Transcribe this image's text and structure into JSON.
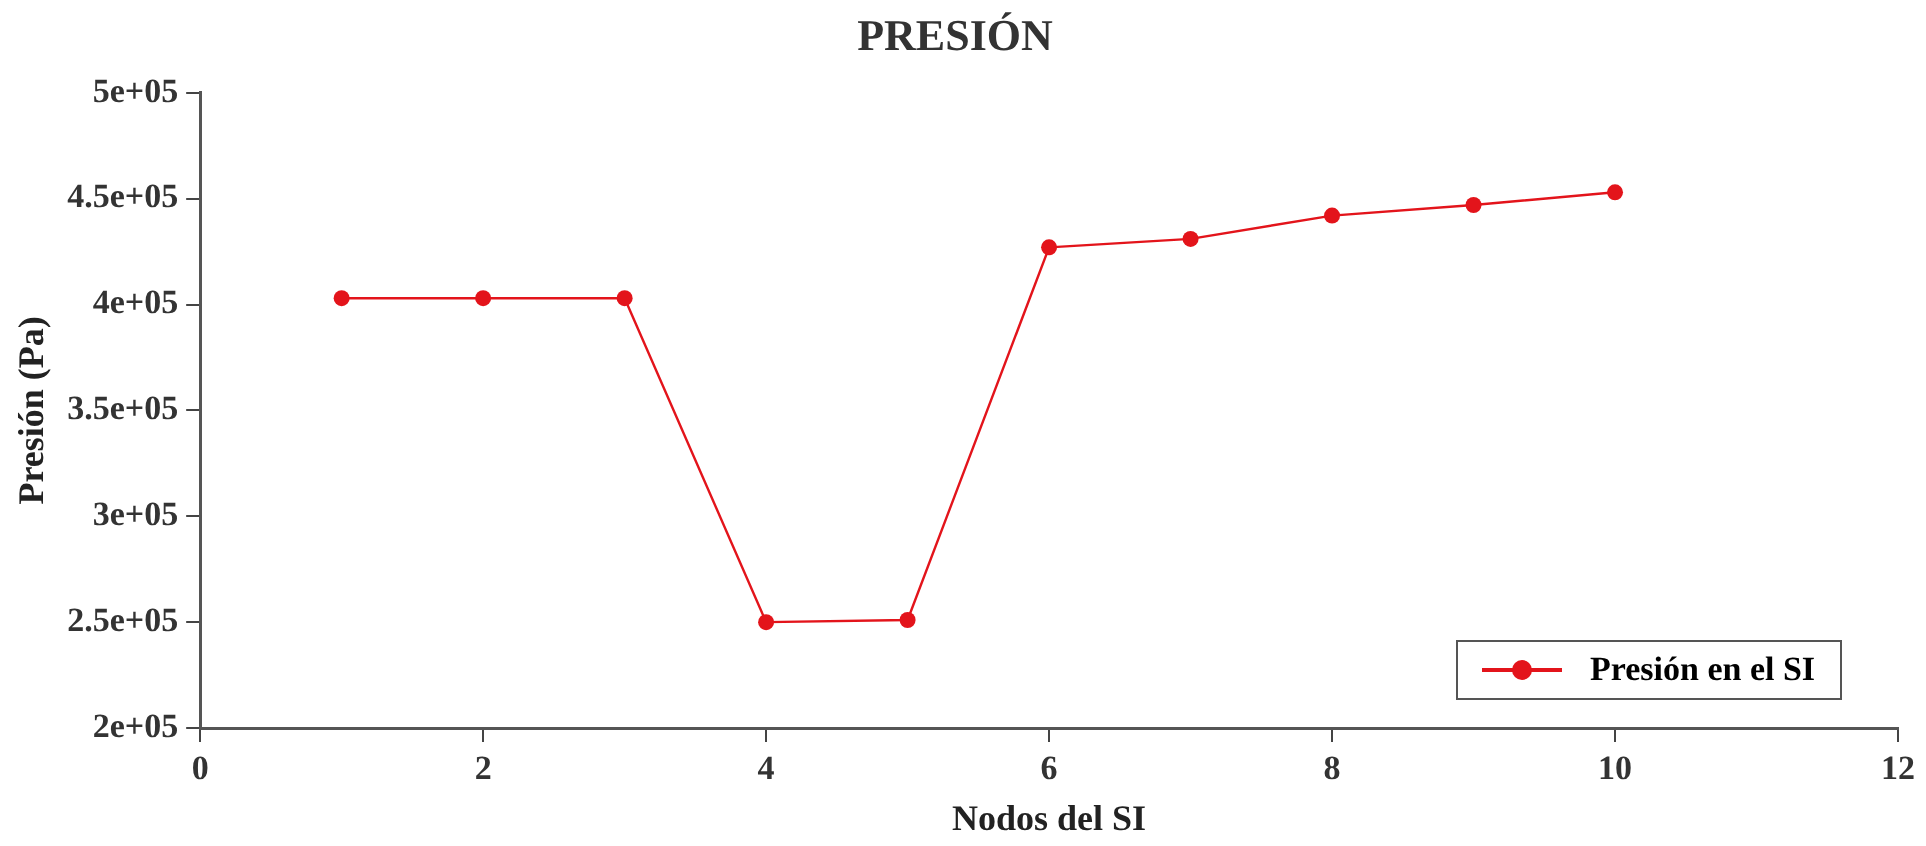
{
  "chart_data": {
    "type": "line",
    "title": "PRESIÓN",
    "xlabel": "Nodos del SI",
    "ylabel": "Presión (Pa)",
    "x": [
      1,
      2,
      3,
      4,
      5,
      6,
      7,
      8,
      9,
      10
    ],
    "series": [
      {
        "name": "Presión en el SI",
        "color": "#e3141b",
        "values": [
          403000,
          403000,
          403000,
          250000,
          251000,
          427000,
          431000,
          442000,
          447000,
          453000
        ]
      }
    ],
    "xlim": [
      0,
      12
    ],
    "xticks": [
      0,
      2,
      4,
      6,
      8,
      10,
      12
    ],
    "ylim": [
      200000,
      500000
    ],
    "yticks": [
      {
        "value": 200000,
        "label": "2e+05"
      },
      {
        "value": 250000,
        "label": "2.5e+05"
      },
      {
        "value": 300000,
        "label": "3e+05"
      },
      {
        "value": 350000,
        "label": "3.5e+05"
      },
      {
        "value": 400000,
        "label": "4e+05"
      },
      {
        "value": 450000,
        "label": "4.5e+05"
      },
      {
        "value": 500000,
        "label": "5e+05"
      }
    ],
    "grid": false,
    "legend": "bottom right",
    "marker": "circle",
    "line_style": "solid"
  }
}
